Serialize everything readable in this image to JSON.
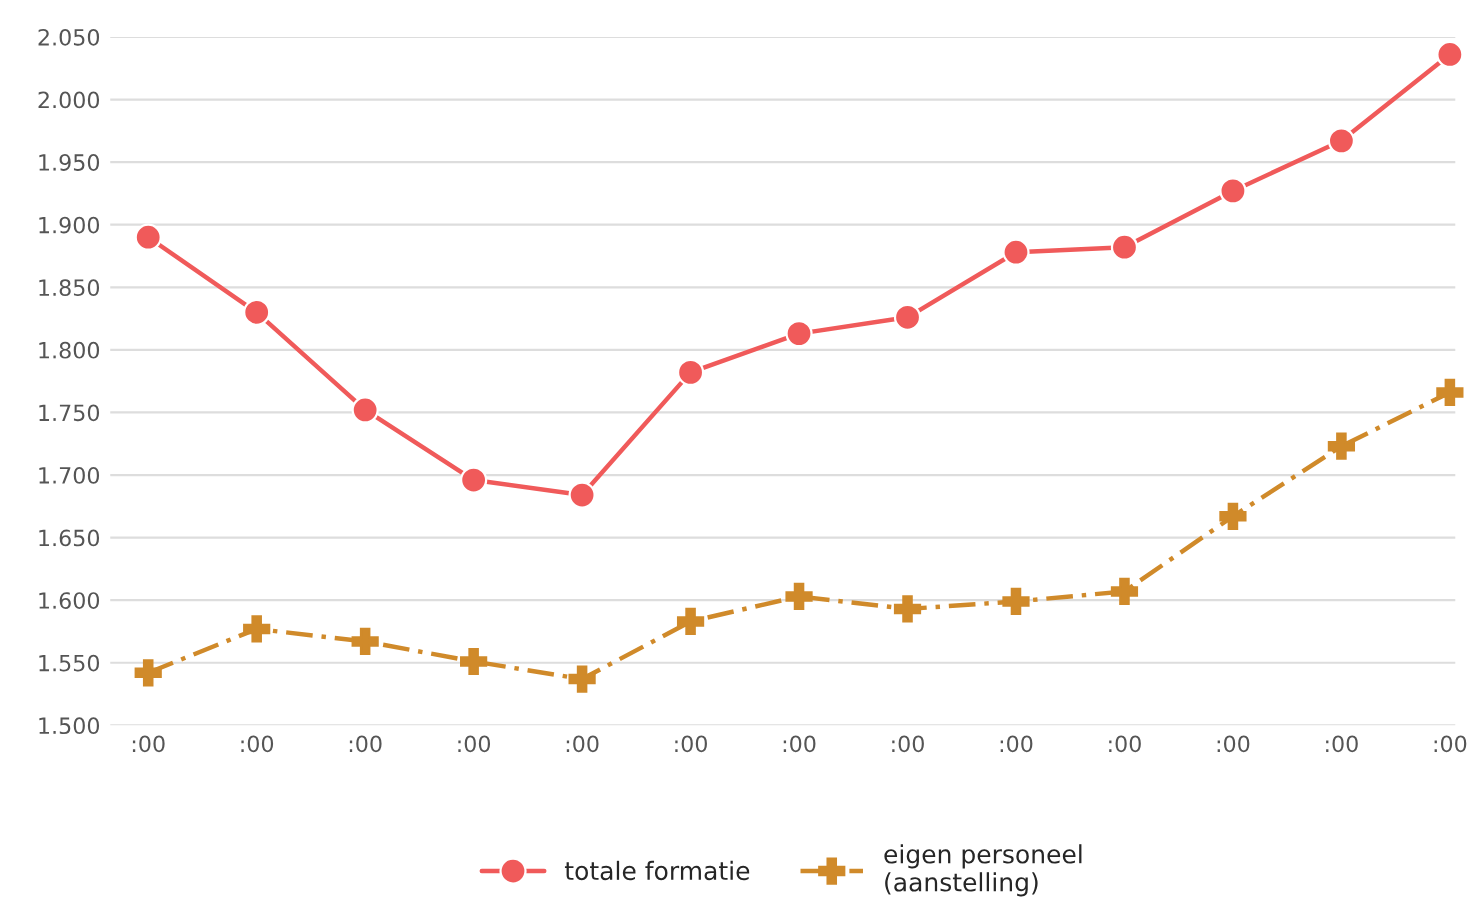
{
  "chart_data": {
    "type": "line",
    "categories": [
      ":00",
      ":00",
      ":00",
      ":00",
      ":00",
      ":00",
      ":00",
      ":00",
      ":00",
      ":00",
      ":00",
      ":00",
      ":00"
    ],
    "series": [
      {
        "name": "totale formatie",
        "color": "#f05a5a",
        "marker": "circle",
        "line_style": "solid",
        "values": [
          1890,
          1830,
          1752,
          1696,
          1684,
          1782,
          1813,
          1826,
          1878,
          1882,
          1927,
          1967,
          2036
        ]
      },
      {
        "name": "eigen personeel\n(aanstelling)",
        "color": "#d08a2a",
        "marker": "cross",
        "line_style": "dashed",
        "values": [
          1542,
          1577,
          1567,
          1551,
          1537,
          1583,
          1603,
          1593,
          1599,
          1607,
          1667,
          1723,
          1766
        ]
      }
    ],
    "ylim": [
      1500,
      2050
    ],
    "yticks": [
      {
        "value": 1500,
        "label": "1.500"
      },
      {
        "value": 1550,
        "label": "1.550"
      },
      {
        "value": 1600,
        "label": "1.600"
      },
      {
        "value": 1650,
        "label": "1.650"
      },
      {
        "value": 1700,
        "label": "1.700"
      },
      {
        "value": 1750,
        "label": "1.750"
      },
      {
        "value": 1800,
        "label": "1.800"
      },
      {
        "value": 1850,
        "label": "1.850"
      },
      {
        "value": 1900,
        "label": "1.900"
      },
      {
        "value": 1950,
        "label": "1.950"
      },
      {
        "value": 2000,
        "label": "2.000"
      },
      {
        "value": 2050,
        "label": "2.050"
      }
    ],
    "grid": "y",
    "legend": "bottom"
  }
}
